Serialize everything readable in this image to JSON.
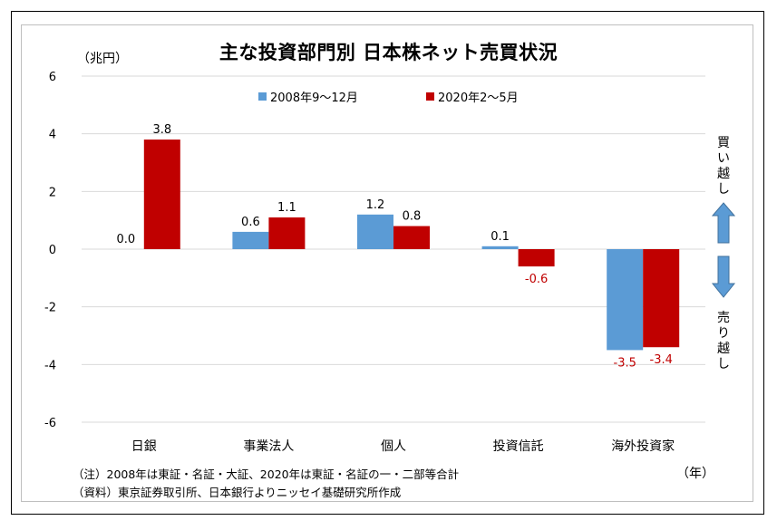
{
  "title": "主な投資部門別 日本株ネット売買状況",
  "unit": "（兆円）",
  "year_label": "（年）",
  "notes": [
    "（注）2008年は東証・名証・大証、2020年は東証・名証の一・二部等合計",
    "（資料）東京証券取引所、日本銀行よりニッセイ基礎研究所作成"
  ],
  "side_labels": {
    "buy": "買い越し",
    "sell": "売り越し"
  },
  "arrow_colors": {
    "fill": "#5b9bd5",
    "stroke": "#41719c"
  },
  "chart_data": {
    "type": "bar",
    "title": "主な投資部門別 日本株ネット売買状況",
    "ylabel": "（兆円）",
    "xlabel": "",
    "ylim": [
      -6,
      6
    ],
    "yticks": [
      6,
      4,
      2,
      0,
      -2,
      -4,
      -6
    ],
    "grid": true,
    "legend": "top",
    "categories": [
      "日銀",
      "事業法人",
      "個人",
      "投資信託",
      "海外投資家"
    ],
    "series": [
      {
        "name": "2008年9～12月",
        "color": "#5b9bd5",
        "values": [
          0.0,
          0.6,
          1.2,
          0.1,
          -3.5
        ]
      },
      {
        "name": "2020年2～5月",
        "color": "#c00000",
        "values": [
          3.8,
          1.1,
          0.8,
          -0.6,
          -3.4
        ]
      }
    ]
  }
}
